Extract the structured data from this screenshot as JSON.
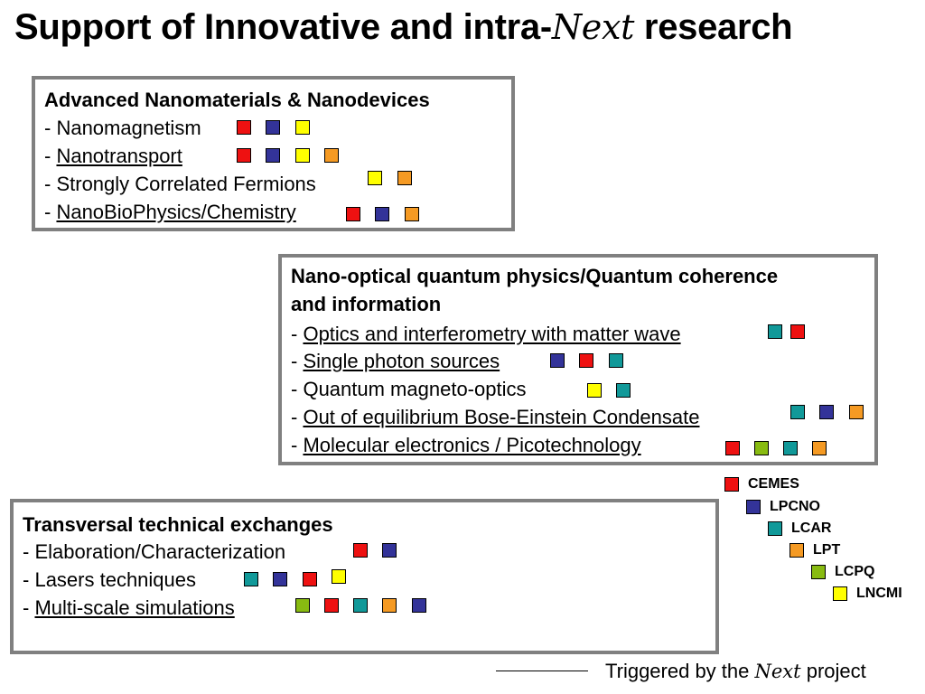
{
  "title": {
    "prefix": "Support of Innovative and intra-",
    "emphasis": "Next",
    "suffix": " research"
  },
  "colors": {
    "CEMES": "#ee1111",
    "LPCNO": "#333399",
    "LCAR": "#119999",
    "LPT": "#f59a23",
    "LCPQ": "#88bb11",
    "LNCMI": "#ffff00"
  },
  "panels": [
    {
      "title_lines": [
        "Advanced Nanomaterials & Nanodevices"
      ],
      "items": [
        {
          "prefix": "- ",
          "text": "Nanomagnetism",
          "underline": false,
          "labs": [
            "CEMES",
            "LPCNO",
            "LNCMI"
          ]
        },
        {
          "prefix": "- ",
          "text": "Nanotransport",
          "underline": true,
          "labs": [
            "CEMES",
            "LPCNO",
            "LNCMI",
            "LPT"
          ]
        },
        {
          "prefix": "- ",
          "text": "Strongly Correlated Fermions",
          "underline": false,
          "labs": [
            "LNCMI",
            "LPT"
          ]
        },
        {
          "prefix": "- ",
          "text": "NanoBioPhysics/Chemistry",
          "underline": true,
          "labs": [
            "CEMES",
            "LPCNO",
            "LPT"
          ]
        }
      ]
    },
    {
      "title_lines": [
        "Nano-optical quantum physics/Quantum coherence",
        "and information"
      ],
      "items": [
        {
          "prefix": "- ",
          "text": "Optics and interferometry with matter wave",
          "underline": true,
          "labs": [
            "LCAR",
            "CEMES"
          ]
        },
        {
          "prefix": "- ",
          "text": "Single photon sources",
          "underline": true,
          "labs": [
            "LPCNO",
            "CEMES",
            "LCAR"
          ]
        },
        {
          "prefix": "- ",
          "text": "Quantum magneto-optics",
          "underline": false,
          "labs": [
            "LNCMI",
            "LCAR"
          ]
        },
        {
          "prefix": "- ",
          "text": "Out of equilibrium Bose-Einstein Condensate",
          "underline": true,
          "labs": [
            "LCAR",
            "LPCNO",
            "LPT"
          ]
        },
        {
          "prefix": "- ",
          "text": "Molecular electronics / Picotechnology",
          "underline": true,
          "labs": [
            "CEMES",
            "LCPQ",
            "LCAR",
            "LPT"
          ]
        }
      ]
    },
    {
      "title_lines": [
        "Transversal technical exchanges"
      ],
      "items": [
        {
          "prefix": "- ",
          "text": "Elaboration/Characterization",
          "underline": false,
          "labs": [
            "CEMES",
            "LPCNO"
          ]
        },
        {
          "prefix": "- ",
          "text": "Lasers techniques",
          "underline": false,
          "labs": [
            "LCAR",
            "LPCNO",
            "CEMES",
            "LNCMI"
          ]
        },
        {
          "prefix": "- ",
          "text": "Multi-scale simulations ",
          "underline": true,
          "labs": [
            "LCPQ",
            "CEMES",
            "LCAR",
            "LPT",
            "LPCNO"
          ]
        }
      ]
    }
  ],
  "legend": [
    "CEMES",
    "LPCNO",
    "LCAR",
    "LPT",
    "LCPQ",
    "LNCMI"
  ],
  "footer": {
    "prefix": "Triggered by the ",
    "emphasis": "Next",
    "suffix": " project"
  }
}
